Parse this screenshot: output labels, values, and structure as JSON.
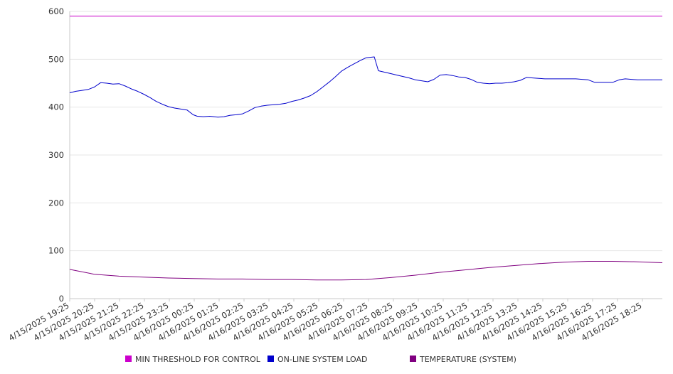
{
  "chart_data": {
    "type": "line",
    "title": "",
    "xlabel": "",
    "ylabel": "",
    "ylim": [
      0,
      600
    ],
    "y_ticks": [
      "0",
      "100",
      "200",
      "300",
      "400",
      "500",
      "600"
    ],
    "x_ticks": [
      "4/15/2025 19:25",
      "4/15/2025 20:25",
      "4/15/2025 21:25",
      "4/15/2025 22:25",
      "4/15/2025 23:25",
      "4/16/2025 00:25",
      "4/16/2025 01:25",
      "4/16/2025 02:25",
      "4/16/2025 03:25",
      "4/16/2025 04:25",
      "4/16/2025 05:25",
      "4/16/2025 06:25",
      "4/16/2025 07:25",
      "4/16/2025 08:25",
      "4/16/2025 09:25",
      "4/16/2025 10:25",
      "4/16/2025 11:25",
      "4/16/2025 12:25",
      "4/16/2025 13:25",
      "4/16/2025 14:25",
      "4/16/2025 15:25",
      "4/16/2025 16:25",
      "4/16/2025 17:25",
      "4/16/2025 18:25"
    ],
    "x_range": [
      "4/15/2025 19:25",
      "4/16/2025 19:25"
    ],
    "grid": "horizontal",
    "legend_position": "bottom",
    "series": [
      {
        "name": "MIN THRESHOLD FOR CONTROL",
        "color": "#cc00cc",
        "x": [
          "4/15/2025 19:25",
          "4/16/2025 19:25"
        ],
        "y": [
          590,
          590
        ]
      },
      {
        "name": "ON-LINE SYSTEM LOAD",
        "color": "#0000cc",
        "x": [
          "4/15/2025 19:25",
          "4/15/2025 19:40",
          "4/15/2025 19:55",
          "4/15/2025 20:10",
          "4/15/2025 20:25",
          "4/15/2025 20:40",
          "4/15/2025 20:55",
          "4/15/2025 21:10",
          "4/15/2025 21:25",
          "4/15/2025 21:40",
          "4/15/2025 21:55",
          "4/15/2025 22:10",
          "4/15/2025 22:25",
          "4/15/2025 22:40",
          "4/15/2025 22:55",
          "4/15/2025 23:10",
          "4/15/2025 23:25",
          "4/15/2025 23:40",
          "4/15/2025 23:55",
          "4/16/2025 00:10",
          "4/16/2025 00:25",
          "4/16/2025 00:35",
          "4/16/2025 00:50",
          "4/16/2025 01:05",
          "4/16/2025 01:25",
          "4/16/2025 01:40",
          "4/16/2025 01:55",
          "4/16/2025 02:10",
          "4/16/2025 02:25",
          "4/16/2025 02:40",
          "4/16/2025 02:55",
          "4/16/2025 03:10",
          "4/16/2025 03:25",
          "4/16/2025 03:40",
          "4/16/2025 03:55",
          "4/16/2025 04:10",
          "4/16/2025 04:25",
          "4/16/2025 04:40",
          "4/16/2025 04:55",
          "4/16/2025 05:10",
          "4/16/2025 05:25",
          "4/16/2025 05:40",
          "4/16/2025 05:55",
          "4/16/2025 06:10",
          "4/16/2025 06:25",
          "4/16/2025 06:40",
          "4/16/2025 06:55",
          "4/16/2025 07:10",
          "4/16/2025 07:25",
          "4/16/2025 07:35",
          "4/16/2025 07:45",
          "4/16/2025 07:55",
          "4/16/2025 08:10",
          "4/16/2025 08:25",
          "4/16/2025 08:40",
          "4/16/2025 08:55",
          "4/16/2025 09:10",
          "4/16/2025 09:25",
          "4/16/2025 09:40",
          "4/16/2025 09:55",
          "4/16/2025 10:10",
          "4/16/2025 10:25",
          "4/16/2025 10:40",
          "4/16/2025 10:55",
          "4/16/2025 11:10",
          "4/16/2025 11:25",
          "4/16/2025 11:40",
          "4/16/2025 11:55",
          "4/16/2025 12:10",
          "4/16/2025 12:25",
          "4/16/2025 12:40",
          "4/16/2025 12:55",
          "4/16/2025 13:10",
          "4/16/2025 13:25",
          "4/16/2025 13:40",
          "4/16/2025 13:55",
          "4/16/2025 14:10",
          "4/16/2025 14:25",
          "4/16/2025 14:40",
          "4/16/2025 14:55",
          "4/16/2025 15:10",
          "4/16/2025 15:25",
          "4/16/2025 15:40",
          "4/16/2025 15:55",
          "4/16/2025 16:10",
          "4/16/2025 16:25",
          "4/16/2025 16:40",
          "4/16/2025 16:55",
          "4/16/2025 17:10",
          "4/16/2025 17:25",
          "4/16/2025 17:40",
          "4/16/2025 17:55",
          "4/16/2025 18:10",
          "4/16/2025 18:25",
          "4/16/2025 18:40",
          "4/16/2025 18:55",
          "4/16/2025 19:10",
          "4/16/2025 19:25"
        ],
        "y": [
          430,
          433,
          435,
          437,
          442,
          451,
          450,
          448,
          449,
          444,
          438,
          433,
          427,
          420,
          412,
          406,
          401,
          398,
          396,
          394,
          384,
          381,
          380,
          381,
          379,
          380,
          383,
          384,
          386,
          392,
          399,
          402,
          404,
          405,
          406,
          408,
          412,
          415,
          419,
          424,
          432,
          442,
          452,
          463,
          475,
          483,
          490,
          497,
          503,
          504,
          505,
          476,
          473,
          470,
          467,
          464,
          461,
          457,
          455,
          453,
          458,
          467,
          468,
          466,
          463,
          462,
          458,
          452,
          450,
          449,
          450,
          450,
          451,
          453,
          456,
          462,
          461,
          460,
          459,
          459,
          459,
          459,
          459,
          459,
          458,
          457,
          452,
          452,
          452,
          452,
          457,
          459,
          458,
          457,
          457,
          457,
          457,
          457
        ]
      },
      {
        "name": "TEMPERATURE (SYSTEM)",
        "color": "#800080",
        "x": [
          "4/15/2025 19:25",
          "4/15/2025 20:25",
          "4/15/2025 21:25",
          "4/15/2025 22:25",
          "4/15/2025 23:25",
          "4/16/2025 00:25",
          "4/16/2025 01:25",
          "4/16/2025 02:25",
          "4/16/2025 03:25",
          "4/16/2025 04:25",
          "4/16/2025 05:25",
          "4/16/2025 06:25",
          "4/16/2025 07:25",
          "4/16/2025 08:25",
          "4/16/2025 09:25",
          "4/16/2025 10:25",
          "4/16/2025 11:25",
          "4/16/2025 12:25",
          "4/16/2025 13:25",
          "4/16/2025 14:25",
          "4/16/2025 15:25",
          "4/16/2025 16:25",
          "4/16/2025 17:25",
          "4/16/2025 18:25",
          "4/16/2025 19:25"
        ],
        "y": [
          61,
          51,
          47,
          45,
          43,
          42,
          41,
          41,
          40,
          40,
          39,
          39,
          40,
          44,
          49,
          55,
          60,
          65,
          69,
          73,
          76,
          78,
          78,
          77,
          75
        ]
      }
    ]
  }
}
